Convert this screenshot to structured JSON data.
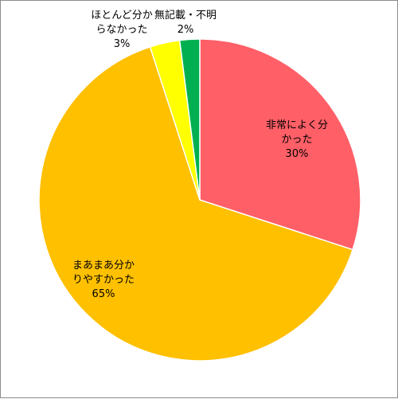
{
  "chart_data": {
    "type": "pie",
    "title": "",
    "legend": "none",
    "slices": [
      {
        "label_lines": [
          "非常によく分",
          "かった"
        ],
        "percent_label": "30%",
        "value": 30,
        "color": "#ff5f67"
      },
      {
        "label_lines": [
          "まあまあ分か",
          "りやすかった"
        ],
        "percent_label": "65%",
        "value": 65,
        "color": "#ffc000"
      },
      {
        "label_lines": [
          "ほとんど分か",
          "らなかった"
        ],
        "percent_label": "3%",
        "value": 3,
        "color": "#ffff00"
      },
      {
        "label_lines": [
          "無記載・不明"
        ],
        "percent_label": "2%",
        "value": 2,
        "color": "#00b050"
      }
    ]
  }
}
